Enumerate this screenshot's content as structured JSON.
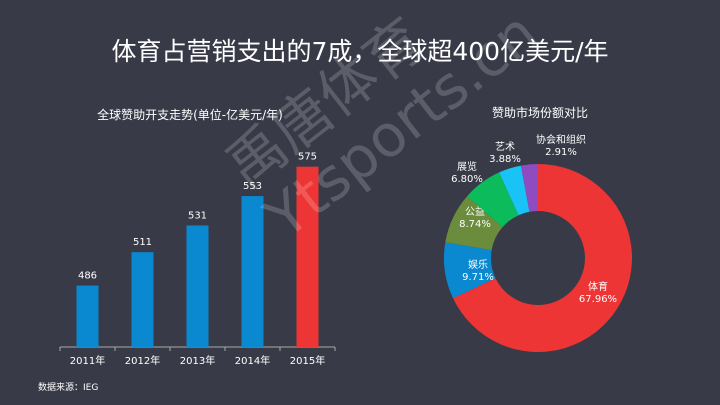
{
  "title": "体育占营销支出的7成，全球超400亿美元/年",
  "source": "数据来源：IEG",
  "watermark": [
    "禹唐体育",
    "Ytsports.cn"
  ],
  "chart_data": [
    {
      "type": "bar",
      "title": "全球赞助开支走势(单位-亿美元/年)",
      "categories": [
        "2011年",
        "2012年",
        "2013年",
        "2014年",
        "2015年"
      ],
      "values": [
        486,
        511,
        531,
        553,
        575
      ],
      "colors": [
        "#0a88d0",
        "#0a88d0",
        "#0a88d0",
        "#0a88d0",
        "#ee3535"
      ],
      "ylim": [
        440,
        580
      ],
      "grid": false
    },
    {
      "type": "pie",
      "title": "赞助市场份额对比",
      "donut": true,
      "slices": [
        {
          "label": "体育",
          "value": 67.96,
          "text": "67.96%",
          "color": "#ee3535"
        },
        {
          "label": "娱乐",
          "value": 9.71,
          "text": "9.71%",
          "color": "#0a88d0"
        },
        {
          "label": "公益",
          "value": 8.74,
          "text": "8.74%",
          "color": "#6a8c3c"
        },
        {
          "label": "展览",
          "value": 6.8,
          "text": "6.80%",
          "color": "#0cbc5c"
        },
        {
          "label": "艺术",
          "value": 3.88,
          "text": "3.88%",
          "color": "#19c3f5"
        },
        {
          "label": "协会和组织",
          "value": 2.91,
          "text": "2.91%",
          "color": "#8e4cc0"
        }
      ]
    }
  ]
}
